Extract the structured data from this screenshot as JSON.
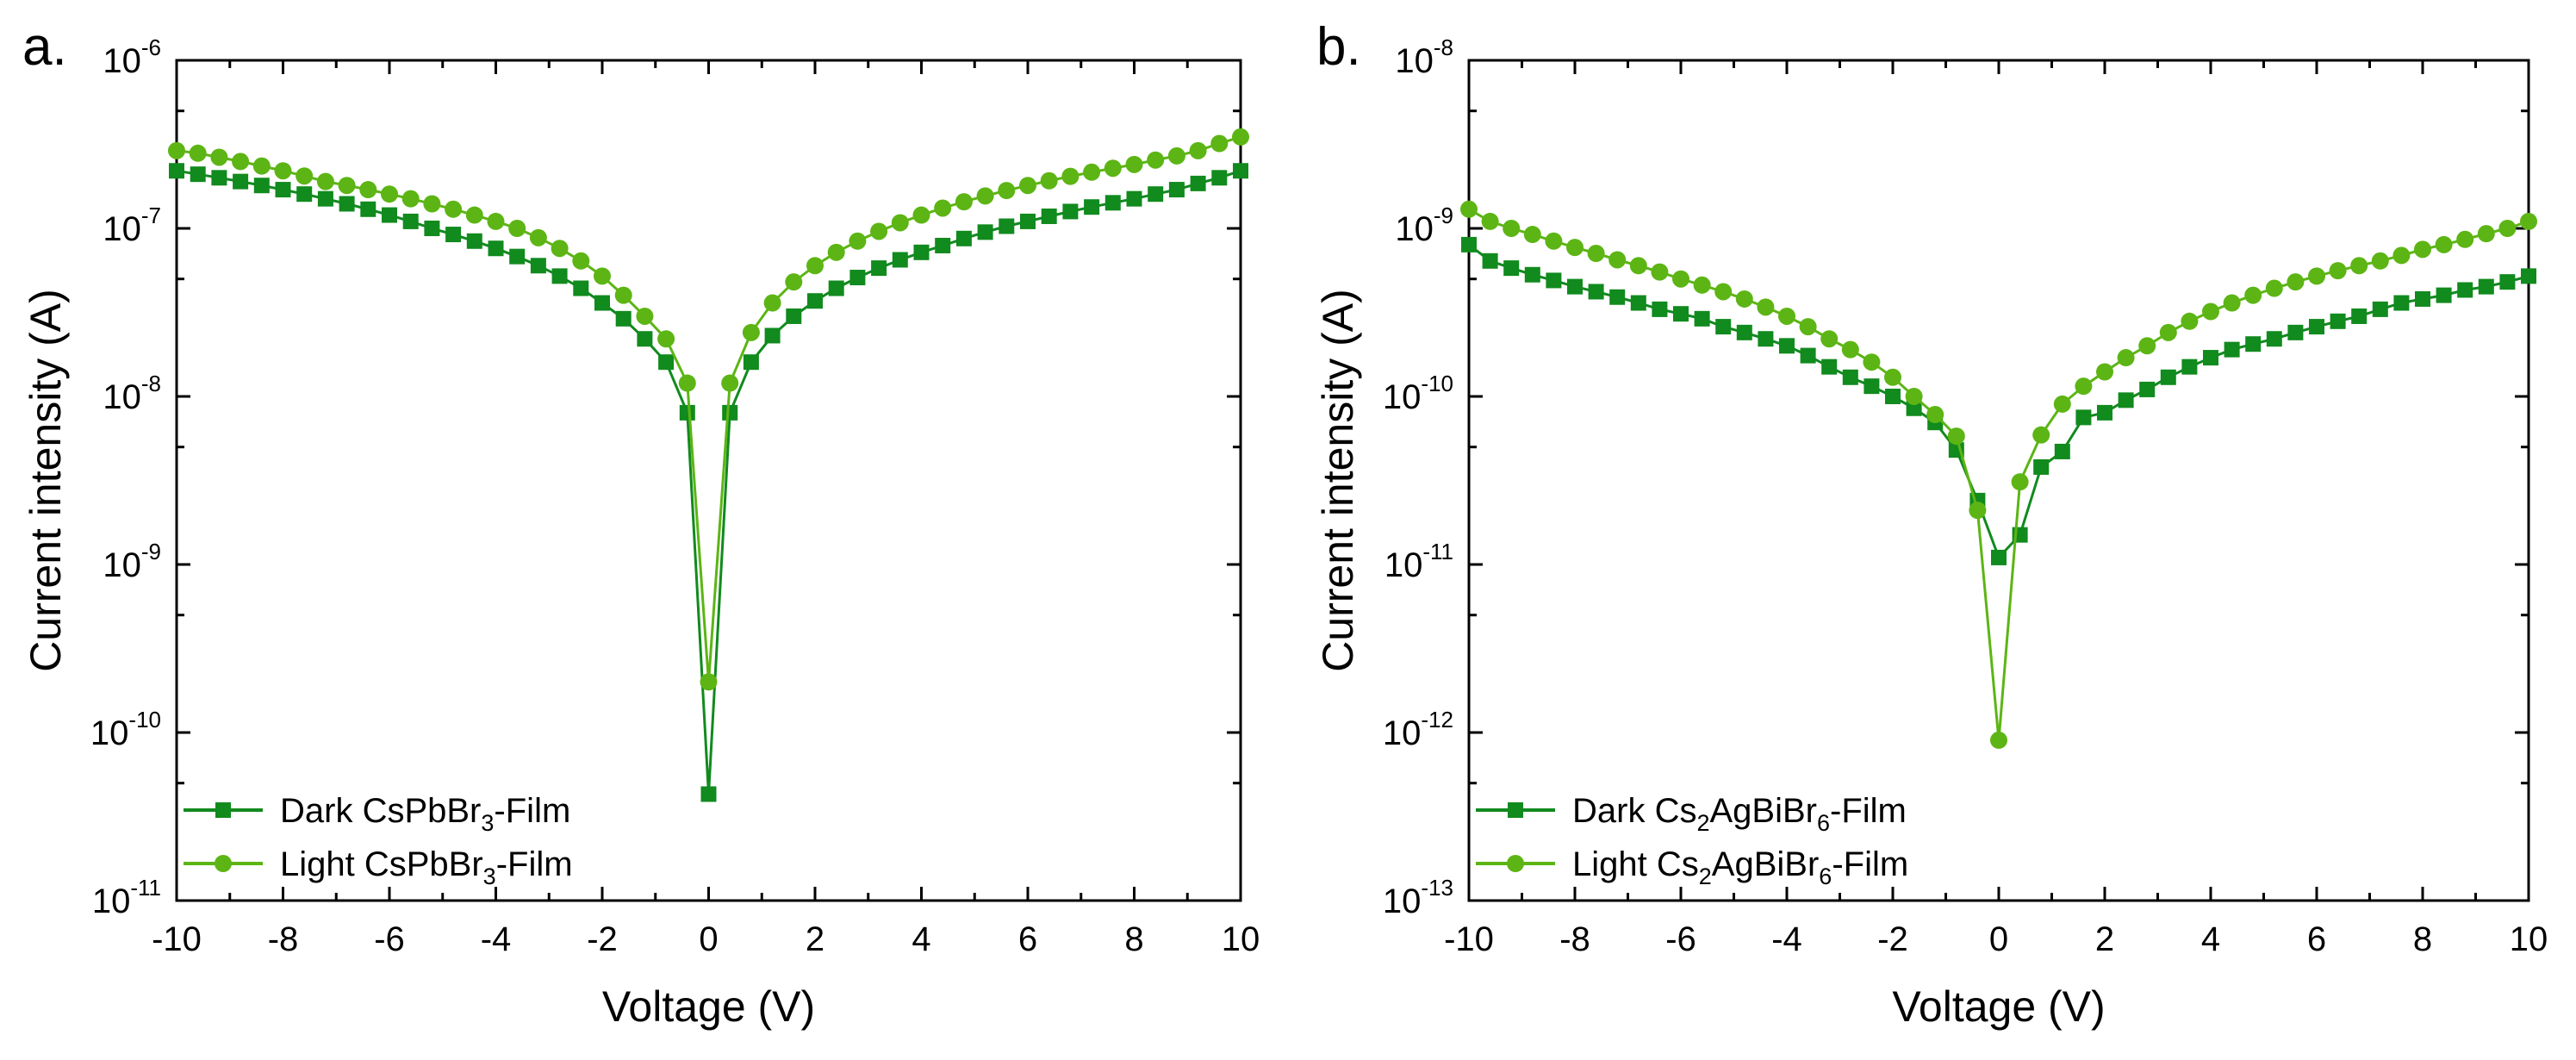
{
  "colors": {
    "dark": "#118a1e",
    "light": "#5cb514",
    "axis": "#000000"
  },
  "chart_data": [
    {
      "type": "line",
      "panel_label": "a.",
      "xlabel": "Voltage (V)",
      "ylabel": "Current intensity (A)",
      "xlim": [
        -10,
        10
      ],
      "ylim_exponent": [
        -11,
        -6
      ],
      "yscale": "log",
      "x_ticks": [
        "-10",
        "-8",
        "-6",
        "-4",
        "-2",
        "0",
        "2",
        "4",
        "6",
        "8",
        "10"
      ],
      "y_ticks": [
        {
          "base": "10",
          "exp": "-11"
        },
        {
          "base": "10",
          "exp": "-10"
        },
        {
          "base": "10",
          "exp": "-9"
        },
        {
          "base": "10",
          "exp": "-8"
        },
        {
          "base": "10",
          "exp": "-7"
        },
        {
          "base": "10",
          "exp": "-6"
        }
      ],
      "legend_position": "bottom-left",
      "series": [
        {
          "name": "Dark CsPbBr3-Film",
          "legend": {
            "pre": "Dark CsPbBr",
            "sub": "3",
            "post": "-Film"
          },
          "marker": "square",
          "color_key": "dark",
          "x": [
            -10,
            -9.6,
            -9.2,
            -8.8,
            -8.4,
            -8.0,
            -7.6,
            -7.2,
            -6.8,
            -6.4,
            -6.0,
            -5.6,
            -5.2,
            -4.8,
            -4.4,
            -4.0,
            -3.6,
            -3.2,
            -2.8,
            -2.4,
            -2.0,
            -1.6,
            -1.2,
            -0.8,
            -0.4,
            0,
            0.4,
            0.8,
            1.2,
            1.6,
            2.0,
            2.4,
            2.8,
            3.2,
            3.6,
            4.0,
            4.4,
            4.8,
            5.2,
            5.6,
            6.0,
            6.4,
            6.8,
            7.2,
            7.6,
            8.0,
            8.4,
            8.8,
            9.2,
            9.6,
            10
          ],
          "y": [
            2.2e-07,
            2.1e-07,
            2e-07,
            1.9e-07,
            1.8e-07,
            1.7e-07,
            1.6e-07,
            1.5e-07,
            1.4e-07,
            1.3e-07,
            1.2e-07,
            1.1e-07,
            1e-07,
            9.2e-08,
            8.4e-08,
            7.6e-08,
            6.8e-08,
            6e-08,
            5.2e-08,
            4.4e-08,
            3.6e-08,
            2.9e-08,
            2.2e-08,
            1.6e-08,
            8e-09,
            4.3e-11,
            8e-09,
            1.6e-08,
            2.3e-08,
            3e-08,
            3.7e-08,
            4.4e-08,
            5.1e-08,
            5.8e-08,
            6.5e-08,
            7.2e-08,
            7.9e-08,
            8.7e-08,
            9.5e-08,
            1.03e-07,
            1.1e-07,
            1.18e-07,
            1.26e-07,
            1.34e-07,
            1.42e-07,
            1.5e-07,
            1.6e-07,
            1.7e-07,
            1.85e-07,
            2e-07,
            2.2e-07
          ]
        },
        {
          "name": "Light CsPbBr3-Film",
          "legend": {
            "pre": "Light CsPbBr",
            "sub": "3",
            "post": "-Film"
          },
          "marker": "circle",
          "color_key": "light",
          "x": [
            -10,
            -9.6,
            -9.2,
            -8.8,
            -8.4,
            -8.0,
            -7.6,
            -7.2,
            -6.8,
            -6.4,
            -6.0,
            -5.6,
            -5.2,
            -4.8,
            -4.4,
            -4.0,
            -3.6,
            -3.2,
            -2.8,
            -2.4,
            -2.0,
            -1.6,
            -1.2,
            -0.8,
            -0.4,
            0,
            0.4,
            0.8,
            1.2,
            1.6,
            2.0,
            2.4,
            2.8,
            3.2,
            3.6,
            4.0,
            4.4,
            4.8,
            5.2,
            5.6,
            6.0,
            6.4,
            6.8,
            7.2,
            7.6,
            8.0,
            8.4,
            8.8,
            9.2,
            9.6,
            10
          ],
          "y": [
            2.9e-07,
            2.8e-07,
            2.65e-07,
            2.5e-07,
            2.35e-07,
            2.2e-07,
            2.05e-07,
            1.9e-07,
            1.8e-07,
            1.7e-07,
            1.6e-07,
            1.5e-07,
            1.4e-07,
            1.3e-07,
            1.2e-07,
            1.1e-07,
            1e-07,
            8.8e-08,
            7.6e-08,
            6.4e-08,
            5.2e-08,
            4e-08,
            3e-08,
            2.2e-08,
            1.2e-08,
            2e-10,
            1.2e-08,
            2.4e-08,
            3.6e-08,
            4.8e-08,
            6e-08,
            7.2e-08,
            8.4e-08,
            9.6e-08,
            1.08e-07,
            1.2e-07,
            1.32e-07,
            1.44e-07,
            1.56e-07,
            1.68e-07,
            1.8e-07,
            1.92e-07,
            2.04e-07,
            2.16e-07,
            2.28e-07,
            2.4e-07,
            2.55e-07,
            2.7e-07,
            2.9e-07,
            3.2e-07,
            3.5e-07
          ]
        }
      ]
    },
    {
      "type": "line",
      "panel_label": "b.",
      "xlabel": "Voltage (V)",
      "ylabel": "Current intensity (A)",
      "xlim": [
        -10,
        10
      ],
      "ylim_exponent": [
        -13,
        -8
      ],
      "yscale": "log",
      "x_ticks": [
        "-10",
        "-8",
        "-6",
        "-4",
        "-2",
        "0",
        "2",
        "4",
        "6",
        "8",
        "10"
      ],
      "y_ticks": [
        {
          "base": "10",
          "exp": "-13"
        },
        {
          "base": "10",
          "exp": "-12"
        },
        {
          "base": "10",
          "exp": "-11"
        },
        {
          "base": "10",
          "exp": "-10"
        },
        {
          "base": "10",
          "exp": "-9"
        },
        {
          "base": "10",
          "exp": "-8"
        }
      ],
      "legend_position": "bottom-left",
      "series": [
        {
          "name": "Dark Cs2AgBiBr6-Film",
          "legend": {
            "pre": "Dark Cs",
            "sub": "2",
            "mid": "AgBiBr",
            "sub2": "6",
            "post": "-Film"
          },
          "marker": "square",
          "color_key": "dark",
          "x": [
            -10,
            -9.6,
            -9.2,
            -8.8,
            -8.4,
            -8.0,
            -7.6,
            -7.2,
            -6.8,
            -6.4,
            -6.0,
            -5.6,
            -5.2,
            -4.8,
            -4.4,
            -4.0,
            -3.6,
            -3.2,
            -2.8,
            -2.4,
            -2.0,
            -1.6,
            -1.2,
            -0.8,
            -0.4,
            0,
            0.4,
            0.8,
            1.2,
            1.6,
            2.0,
            2.4,
            2.8,
            3.2,
            3.6,
            4.0,
            4.4,
            4.8,
            5.2,
            5.6,
            6.0,
            6.4,
            6.8,
            7.2,
            7.6,
            8.0,
            8.4,
            8.8,
            9.2,
            9.6,
            10
          ],
          "y": [
            8e-10,
            6.4e-10,
            5.8e-10,
            5.3e-10,
            4.9e-10,
            4.5e-10,
            4.2e-10,
            3.9e-10,
            3.6e-10,
            3.3e-10,
            3.1e-10,
            2.9e-10,
            2.6e-10,
            2.4e-10,
            2.2e-10,
            2e-10,
            1.75e-10,
            1.5e-10,
            1.3e-10,
            1.15e-10,
            1e-10,
            8.5e-11,
            7e-11,
            4.8e-11,
            2.4e-11,
            1.1e-11,
            1.5e-11,
            3.8e-11,
            4.7e-11,
            7.5e-11,
            8e-11,
            9.5e-11,
            1.1e-10,
            1.3e-10,
            1.5e-10,
            1.7e-10,
            1.9e-10,
            2.05e-10,
            2.2e-10,
            2.4e-10,
            2.6e-10,
            2.8e-10,
            3e-10,
            3.3e-10,
            3.6e-10,
            3.8e-10,
            4e-10,
            4.3e-10,
            4.5e-10,
            4.8e-10,
            5.2e-10
          ]
        },
        {
          "name": "Light Cs2AgBiBr6-Film",
          "legend": {
            "pre": "Light Cs",
            "sub": "2",
            "mid": "AgBiBr",
            "sub2": "6",
            "post": "-Film"
          },
          "marker": "circle",
          "color_key": "light",
          "x": [
            -10,
            -9.6,
            -9.2,
            -8.8,
            -8.4,
            -8.0,
            -7.6,
            -7.2,
            -6.8,
            -6.4,
            -6.0,
            -5.6,
            -5.2,
            -4.8,
            -4.4,
            -4.0,
            -3.6,
            -3.2,
            -2.8,
            -2.4,
            -2.0,
            -1.6,
            -1.2,
            -0.8,
            -0.4,
            0,
            0.4,
            0.8,
            1.2,
            1.6,
            2.0,
            2.4,
            2.8,
            3.2,
            3.6,
            4.0,
            4.4,
            4.8,
            5.2,
            5.6,
            6.0,
            6.4,
            6.8,
            7.2,
            7.6,
            8.0,
            8.4,
            8.8,
            9.2,
            9.6,
            10
          ],
          "y": [
            1.3e-09,
            1.1e-09,
            1e-09,
            9.2e-10,
            8.4e-10,
            7.7e-10,
            7.1e-10,
            6.5e-10,
            6e-10,
            5.5e-10,
            5e-10,
            4.6e-10,
            4.2e-10,
            3.8e-10,
            3.4e-10,
            3e-10,
            2.6e-10,
            2.2e-10,
            1.9e-10,
            1.6e-10,
            1.3e-10,
            1e-10,
            7.8e-11,
            5.8e-11,
            2.1e-11,
            9e-13,
            3.1e-11,
            5.9e-11,
            9e-11,
            1.15e-10,
            1.4e-10,
            1.7e-10,
            2e-10,
            2.4e-10,
            2.8e-10,
            3.2e-10,
            3.6e-10,
            4e-10,
            4.4e-10,
            4.8e-10,
            5.2e-10,
            5.6e-10,
            6e-10,
            6.4e-10,
            6.9e-10,
            7.5e-10,
            8e-10,
            8.6e-10,
            9.3e-10,
            1e-09,
            1.1e-09
          ]
        }
      ]
    }
  ]
}
